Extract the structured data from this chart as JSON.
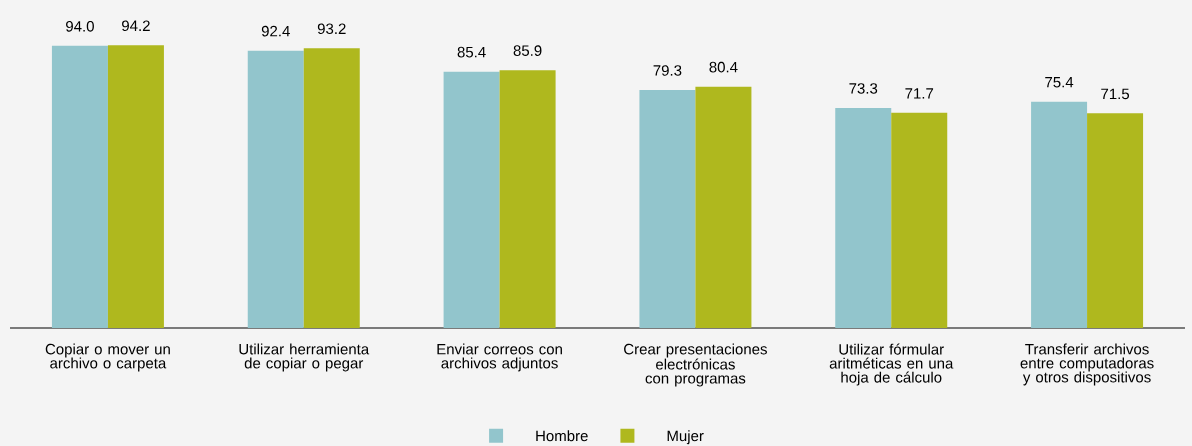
{
  "chart_data": {
    "type": "bar",
    "legend": "bottom",
    "categories": [
      "Copiar o mover un archivo o carpeta",
      "Utilizar herramienta de copiar o pegar",
      "Enviar correos con archivos adjuntos",
      "Crear presentaciones electrónicas con programas",
      "Utilizar fórmular aritméticas en una hoja de cálculo",
      "Transferir archivos entre computadoras y otros dispositivos"
    ],
    "series": [
      {
        "name": "Hombre",
        "color": "#92c5cc",
        "values": [
          94.0,
          92.4,
          85.4,
          79.3,
          73.3,
          75.4
        ],
        "value_labels": [
          "94.0",
          "92.4",
          "85.4",
          "79.3",
          "73.3",
          "75.4"
        ]
      },
      {
        "name": "Mujer",
        "color": "#afb81e",
        "values": [
          94.2,
          93.2,
          85.9,
          80.4,
          71.7,
          71.5
        ],
        "value_labels": [
          "94.2",
          "93.2",
          "85.9",
          "80.4",
          "71.7",
          "71.5"
        ]
      }
    ]
  }
}
